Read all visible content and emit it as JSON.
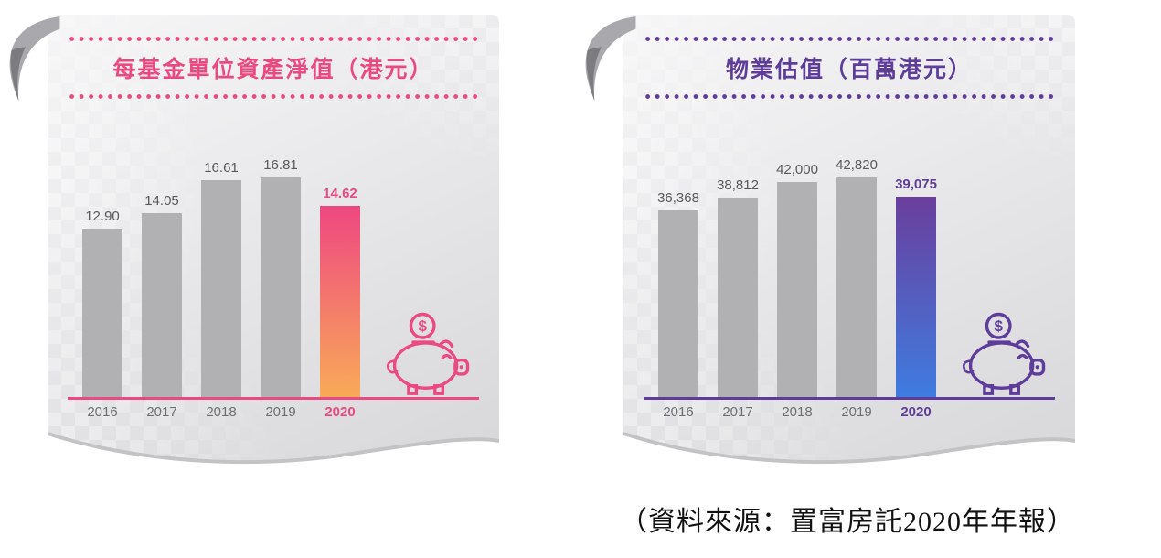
{
  "source_note": "（資料來源：置富房託2020年年報）",
  "chart_data": [
    {
      "type": "bar",
      "title": "每基金單位資產淨值（港元）",
      "categories": [
        "2016",
        "2017",
        "2018",
        "2019",
        "2020"
      ],
      "values": [
        12.9,
        14.05,
        16.61,
        16.81,
        14.62
      ],
      "value_labels": [
        "12.90",
        "14.05",
        "16.61",
        "16.81",
        "14.62"
      ],
      "highlight_index": 4,
      "ylim": [
        0,
        18
      ],
      "grid": false,
      "legend": "none",
      "accent": "#ea4a80",
      "bar_color": "#b1b1b4",
      "bar_gradient": [
        "#ee4781",
        "#f9aa58"
      ],
      "value_label_color": "#58595b",
      "icon": "piggy-bank-coin-icon"
    },
    {
      "type": "bar",
      "title": "物業估值（百萬港元）",
      "categories": [
        "2016",
        "2017",
        "2018",
        "2019",
        "2020"
      ],
      "values": [
        36368,
        38812,
        42000,
        42820,
        39075
      ],
      "value_labels": [
        "36,368",
        "38,812",
        "42,000",
        "42,820",
        "39,075"
      ],
      "highlight_index": 4,
      "ylim": [
        0,
        46000
      ],
      "grid": false,
      "legend": "none",
      "accent": "#5e3c99",
      "bar_color": "#b1b1b4",
      "bar_gradient": [
        "#6a3e9c",
        "#3f7ce0"
      ],
      "value_label_color": "#58595b",
      "icon": "piggy-bank-coin-icon"
    }
  ]
}
